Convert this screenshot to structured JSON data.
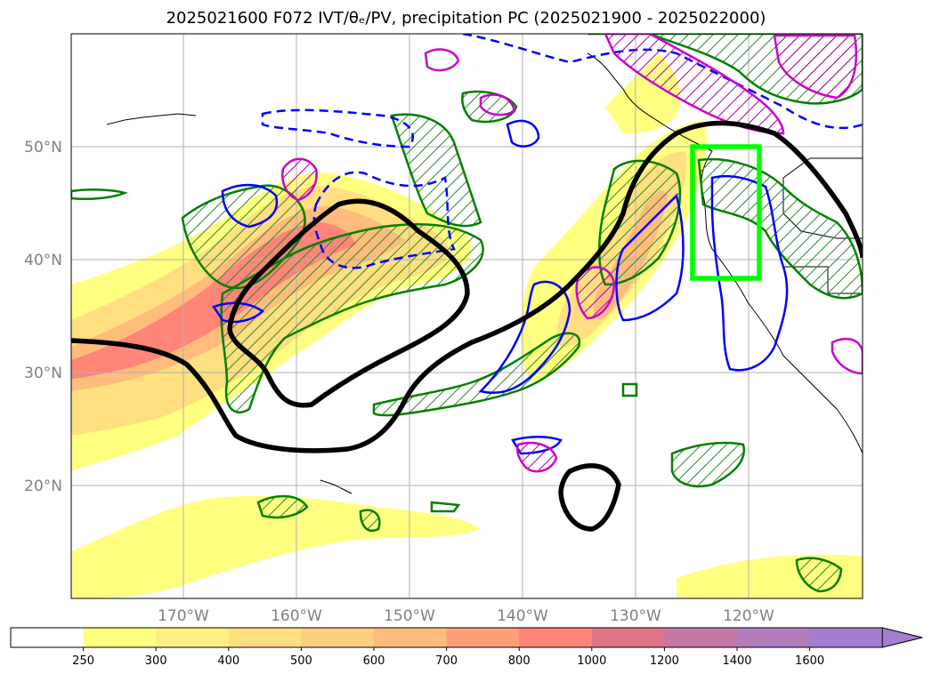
{
  "title": "2025021600 F072 IVT/θₑ/PV, precipitation PC (2025021900 - 2025022000)",
  "map": {
    "projection": "PlateCarree",
    "lon_range": [
      -180,
      -110
    ],
    "lat_range": [
      10,
      60
    ],
    "lat_labels": [
      "20°N",
      "30°N",
      "40°N",
      "50°N"
    ],
    "lon_labels": [
      "170°W",
      "160°W",
      "150°W",
      "140°W",
      "130°W",
      "120°W"
    ],
    "gridlines": true,
    "region_box": {
      "color": "#00ff00",
      "lon": [
        -125,
        -119
      ],
      "lat": [
        38,
        50
      ]
    }
  },
  "colorbar": {
    "levels": [
      "250",
      "300",
      "400",
      "500",
      "600",
      "700",
      "800",
      "1000",
      "1200",
      "1400",
      "1600"
    ],
    "colors": [
      "#ffffff",
      "#ffff80",
      "#ffef82",
      "#ffdf80",
      "#ffcf7f",
      "#ffbc7c",
      "#ff9f78",
      "#ff8578",
      "#e07588",
      "#c57aa5",
      "#b47dbf",
      "#a67ed0"
    ],
    "extend": "max"
  },
  "contour_colors": {
    "ivt_shading": "#ff8878",
    "theta_e": "#000000",
    "pv_positive": "#0000ff",
    "pv_negative": "#cc00cc",
    "precip_pc": "#008000"
  }
}
